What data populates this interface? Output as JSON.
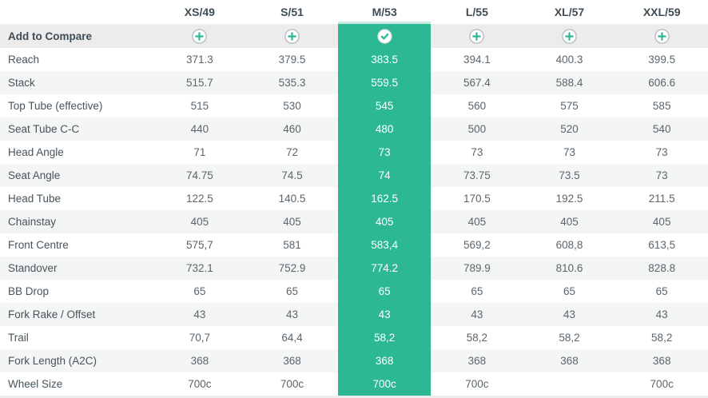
{
  "colors": {
    "accent": "#2bb893",
    "accent_light": "#c9ebe1",
    "stripe": "#f4f5f5",
    "compare_row_bg": "#ececed",
    "header_text": "#3e4c55",
    "label_text": "#47545c",
    "value_text": "#5b656d",
    "plus_ring": "#b6bec2",
    "check_ring": "#d3d7d9"
  },
  "columns": [
    "XS/49",
    "S/51",
    "M/53",
    "L/55",
    "XL/57",
    "XXL/59"
  ],
  "selected_column": "M/53",
  "selected_column_index": 2,
  "compare": {
    "label": "Add to Compare",
    "buttons": [
      {
        "column": "XS/49",
        "icon": "plus-icon",
        "state": "addable"
      },
      {
        "column": "S/51",
        "icon": "plus-icon",
        "state": "addable"
      },
      {
        "column": "M/53",
        "icon": "check-icon",
        "state": "selected"
      },
      {
        "column": "L/55",
        "icon": "plus-icon",
        "state": "addable"
      },
      {
        "column": "XL/57",
        "icon": "plus-icon",
        "state": "addable"
      },
      {
        "column": "XXL/59",
        "icon": "plus-icon",
        "state": "addable"
      }
    ]
  },
  "rows": [
    {
      "label": "Reach",
      "values": [
        "371.3",
        "379.5",
        "383.5",
        "394.1",
        "400.3",
        "399.5"
      ]
    },
    {
      "label": "Stack",
      "values": [
        "515.7",
        "535.3",
        "559.5",
        "567.4",
        "588.4",
        "606.6"
      ]
    },
    {
      "label": "Top Tube (effective)",
      "values": [
        "515",
        "530",
        "545",
        "560",
        "575",
        "585"
      ]
    },
    {
      "label": "Seat Tube C-C",
      "values": [
        "440",
        "460",
        "480",
        "500",
        "520",
        "540"
      ]
    },
    {
      "label": "Head Angle",
      "values": [
        "71",
        "72",
        "73",
        "73",
        "73",
        "73"
      ]
    },
    {
      "label": "Seat Angle",
      "values": [
        "74.75",
        "74.5",
        "74",
        "73.75",
        "73.5",
        "73"
      ]
    },
    {
      "label": "Head Tube",
      "values": [
        "122.5",
        "140.5",
        "162.5",
        "170.5",
        "192.5",
        "211.5"
      ]
    },
    {
      "label": "Chainstay",
      "values": [
        "405",
        "405",
        "405",
        "405",
        "405",
        "405"
      ]
    },
    {
      "label": "Front Centre",
      "values": [
        "575,7",
        "581",
        "583,4",
        "569,2",
        "608,8",
        "613,5"
      ]
    },
    {
      "label": "Standover",
      "values": [
        "732.1",
        "752.9",
        "774.2",
        "789.9",
        "810.6",
        "828.8"
      ]
    },
    {
      "label": "BB Drop",
      "values": [
        "65",
        "65",
        "65",
        "65",
        "65",
        "65"
      ]
    },
    {
      "label": "Fork Rake / Offset",
      "values": [
        "43",
        "43",
        "43",
        "43",
        "43",
        "43"
      ]
    },
    {
      "label": "Trail",
      "values": [
        "70,7",
        "64,4",
        "58,2",
        "58,2",
        "58,2",
        "58,2"
      ]
    },
    {
      "label": "Fork Length (A2C)",
      "values": [
        "368",
        "368",
        "368",
        "368",
        "368",
        "368"
      ]
    },
    {
      "label": "Wheel Size",
      "values": [
        "700c",
        "700c",
        "700c",
        "700c",
        "",
        "700c"
      ]
    }
  ]
}
